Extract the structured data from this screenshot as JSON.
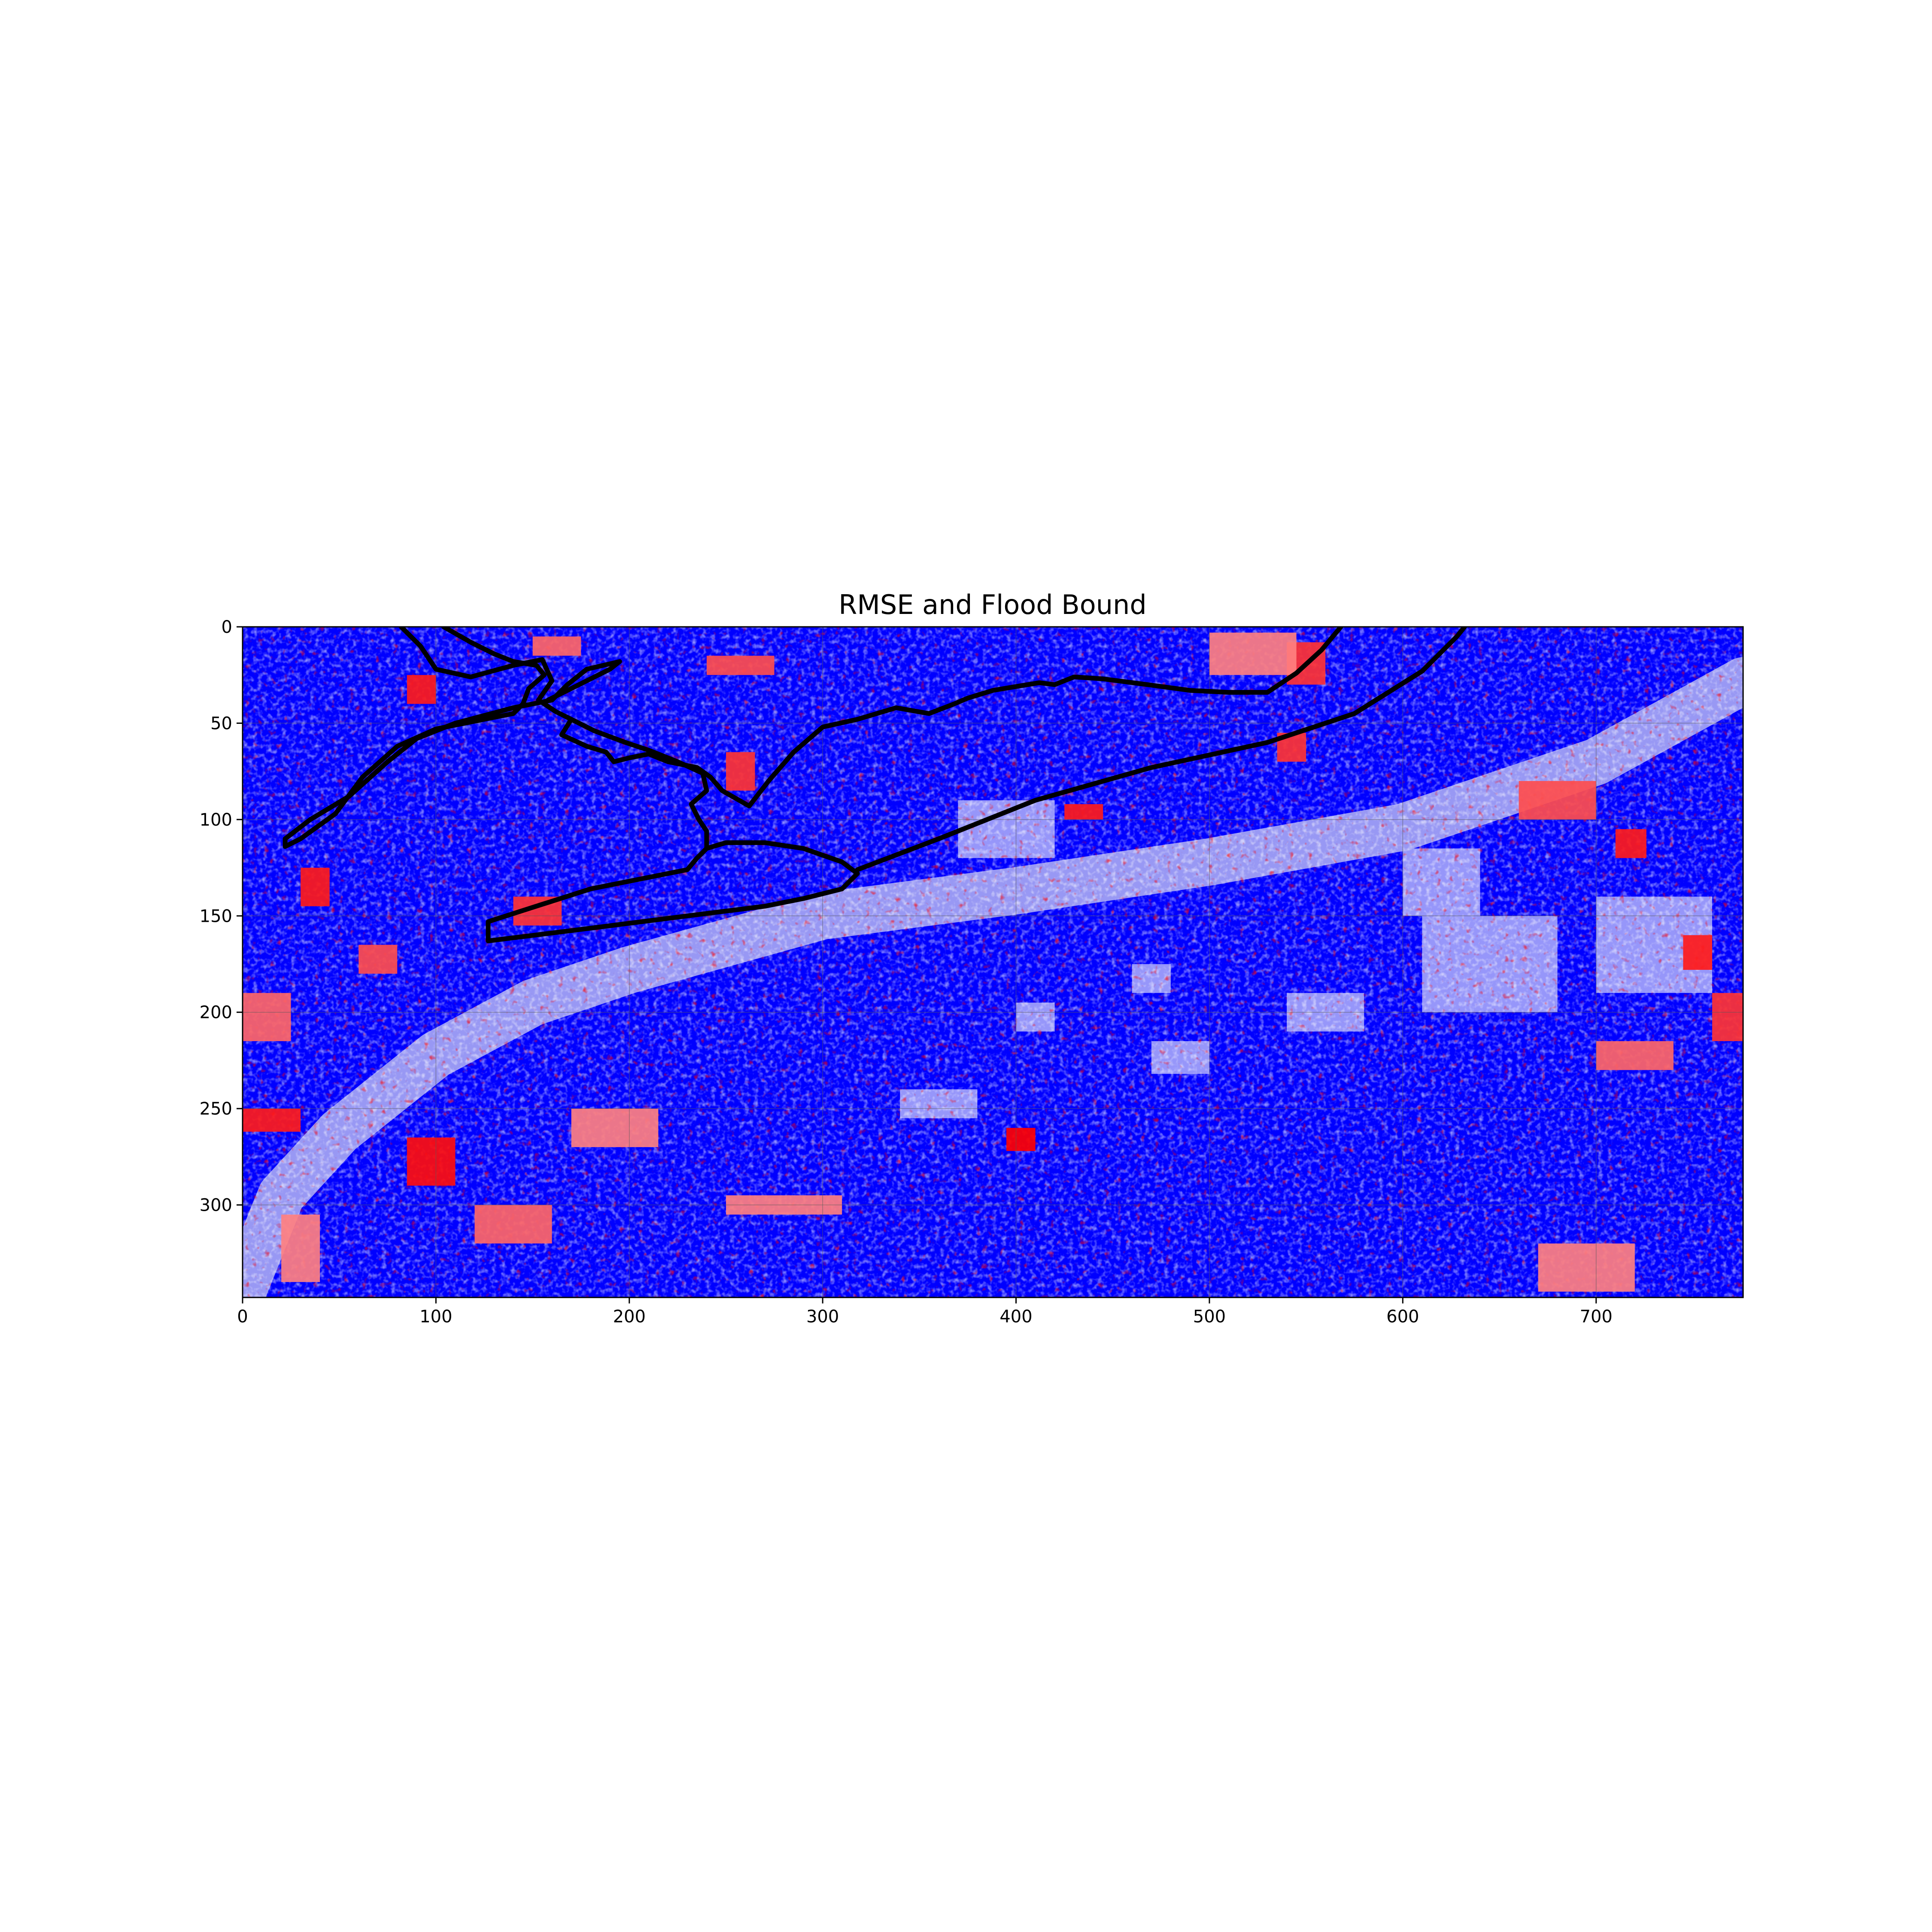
{
  "chart_data": {
    "type": "heatmap",
    "title": "RMSE and Flood Bound",
    "xlabel": "",
    "ylabel": "",
    "xlim": [
      0,
      776
    ],
    "ylim": [
      348,
      0
    ],
    "x_ticks": [
      0,
      100,
      200,
      300,
      400,
      500,
      600,
      700
    ],
    "y_ticks": [
      0,
      50,
      100,
      150,
      200,
      250,
      300
    ],
    "grid": true,
    "colormap": "bwr",
    "colors": {
      "low": "#0000ff",
      "mid": "#ffffff",
      "high": "#ff0000",
      "bound_line": "#000000"
    },
    "river_band": {
      "description_free": true,
      "centerline": [
        [
          0,
          345
        ],
        [
          20,
          295
        ],
        [
          50,
          262
        ],
        [
          100,
          222
        ],
        [
          150,
          195
        ],
        [
          200,
          178
        ],
        [
          300,
          150
        ],
        [
          400,
          137
        ],
        [
          500,
          122
        ],
        [
          600,
          104
        ],
        [
          700,
          70
        ],
        [
          776,
          28
        ]
      ]
    },
    "hot_patches": [
      {
        "x": [
          85,
          100
        ],
        "y": [
          25,
          40
        ],
        "value": 0.9
      },
      {
        "x": [
          150,
          175
        ],
        "y": [
          5,
          15
        ],
        "value": 0.6
      },
      {
        "x": [
          240,
          275
        ],
        "y": [
          15,
          25
        ],
        "value": 0.7
      },
      {
        "x": [
          540,
          560
        ],
        "y": [
          8,
          30
        ],
        "value": 0.8
      },
      {
        "x": [
          500,
          545
        ],
        "y": [
          3,
          25
        ],
        "value": 0.5
      },
      {
        "x": [
          250,
          265
        ],
        "y": [
          65,
          85
        ],
        "value": 0.8
      },
      {
        "x": [
          30,
          45
        ],
        "y": [
          125,
          145
        ],
        "value": 0.9
      },
      {
        "x": [
          140,
          165
        ],
        "y": [
          140,
          155
        ],
        "value": 0.8
      },
      {
        "x": [
          85,
          110
        ],
        "y": [
          265,
          290
        ],
        "value": 0.95
      },
      {
        "x": [
          170,
          215
        ],
        "y": [
          250,
          270
        ],
        "value": 0.5
      },
      {
        "x": [
          395,
          410
        ],
        "y": [
          260,
          272
        ],
        "value": 1.0
      },
      {
        "x": [
          0,
          30
        ],
        "y": [
          250,
          262
        ],
        "value": 0.9
      },
      {
        "x": [
          250,
          310
        ],
        "y": [
          295,
          305
        ],
        "value": 0.5
      },
      {
        "x": [
          660,
          700
        ],
        "y": [
          80,
          100
        ],
        "value": 0.7
      },
      {
        "x": [
          710,
          726
        ],
        "y": [
          105,
          120
        ],
        "value": 0.9
      },
      {
        "x": [
          745,
          760
        ],
        "y": [
          160,
          178
        ],
        "value": 0.9
      },
      {
        "x": [
          700,
          740
        ],
        "y": [
          215,
          230
        ],
        "value": 0.6
      },
      {
        "x": [
          670,
          720
        ],
        "y": [
          320,
          345
        ],
        "value": 0.5
      },
      {
        "x": [
          0,
          25
        ],
        "y": [
          190,
          215
        ],
        "value": 0.6
      },
      {
        "x": [
          20,
          40
        ],
        "y": [
          305,
          340
        ],
        "value": 0.5
      },
      {
        "x": [
          120,
          160
        ],
        "y": [
          300,
          320
        ],
        "value": 0.6
      },
      {
        "x": [
          425,
          445
        ],
        "y": [
          92,
          100
        ],
        "value": 0.9
      },
      {
        "x": [
          535,
          550
        ],
        "y": [
          55,
          70
        ],
        "value": 0.8
      },
      {
        "x": [
          60,
          80
        ],
        "y": [
          165,
          180
        ],
        "value": 0.7
      },
      {
        "x": [
          760,
          776
        ],
        "y": [
          190,
          215
        ],
        "value": 0.8
      }
    ],
    "pale_patches": [
      {
        "x": [
          400,
          420
        ],
        "y": [
          195,
          210
        ]
      },
      {
        "x": [
          460,
          480
        ],
        "y": [
          175,
          190
        ]
      },
      {
        "x": [
          540,
          580
        ],
        "y": [
          190,
          210
        ]
      },
      {
        "x": [
          340,
          380
        ],
        "y": [
          240,
          255
        ]
      },
      {
        "x": [
          610,
          680
        ],
        "y": [
          150,
          200
        ]
      },
      {
        "x": [
          700,
          760
        ],
        "y": [
          140,
          190
        ]
      },
      {
        "x": [
          370,
          420
        ],
        "y": [
          90,
          120
        ]
      },
      {
        "x": [
          470,
          500
        ],
        "y": [
          215,
          232
        ]
      },
      {
        "x": [
          600,
          640
        ],
        "y": [
          115,
          150
        ]
      }
    ],
    "flood_bound": [
      {
        "name": "",
        "points": [
          [
            82,
            0
          ],
          [
            92,
            10
          ],
          [
            100,
            22
          ],
          [
            118,
            26
          ],
          [
            140,
            20
          ],
          [
            155,
            17
          ],
          [
            160,
            28
          ],
          [
            153,
            38
          ],
          [
            162,
            44
          ],
          [
            170,
            48
          ],
          [
            165,
            56
          ],
          [
            178,
            62
          ],
          [
            188,
            65
          ],
          [
            192,
            70
          ],
          [
            200,
            68
          ],
          [
            210,
            66
          ],
          [
            220,
            70
          ],
          [
            235,
            73
          ],
          [
            242,
            78
          ],
          [
            248,
            85
          ],
          [
            262,
            93
          ],
          [
            272,
            80
          ],
          [
            285,
            65
          ],
          [
            300,
            52
          ],
          [
            318,
            48
          ],
          [
            338,
            42
          ],
          [
            355,
            45
          ],
          [
            368,
            40
          ],
          [
            375,
            37
          ],
          [
            388,
            33
          ],
          [
            400,
            31
          ],
          [
            412,
            29
          ],
          [
            420,
            30
          ],
          [
            430,
            26
          ],
          [
            445,
            27
          ],
          [
            468,
            30
          ],
          [
            490,
            33
          ],
          [
            510,
            34
          ],
          [
            530,
            34
          ],
          [
            545,
            24
          ],
          [
            558,
            12
          ],
          [
            568,
            0
          ]
        ]
      },
      {
        "name": "",
        "points": [
          [
            104,
            0
          ],
          [
            118,
            8
          ],
          [
            130,
            14
          ],
          [
            140,
            18
          ],
          [
            152,
            20
          ],
          [
            156,
            25
          ],
          [
            148,
            32
          ],
          [
            145,
            40
          ],
          [
            140,
            45
          ],
          [
            125,
            48
          ],
          [
            100,
            53
          ],
          [
            80,
            62
          ],
          [
            62,
            78
          ],
          [
            48,
            97
          ],
          [
            30,
            110
          ],
          [
            22,
            114
          ],
          [
            22,
            110
          ],
          [
            35,
            100
          ],
          [
            55,
            88
          ],
          [
            75,
            70
          ],
          [
            90,
            58
          ],
          [
            110,
            50
          ],
          [
            140,
            42
          ],
          [
            160,
            38
          ],
          [
            168,
            30
          ],
          [
            178,
            22
          ],
          [
            195,
            18
          ],
          [
            190,
            22
          ],
          [
            170,
            32
          ],
          [
            158,
            38
          ]
        ]
      },
      {
        "name": "",
        "points": [
          [
            170,
            48
          ],
          [
            182,
            54
          ],
          [
            198,
            60
          ],
          [
            210,
            64
          ],
          [
            225,
            70
          ],
          [
            238,
            76
          ],
          [
            240,
            85
          ],
          [
            232,
            92
          ],
          [
            236,
            100
          ],
          [
            240,
            106
          ],
          [
            240,
            115
          ],
          [
            235,
            120
          ],
          [
            230,
            126
          ],
          [
            210,
            130
          ],
          [
            180,
            136
          ],
          [
            155,
            144
          ],
          [
            127,
            153
          ],
          [
            127,
            163
          ],
          [
            175,
            157
          ],
          [
            230,
            150
          ],
          [
            270,
            145
          ],
          [
            290,
            141
          ],
          [
            310,
            136
          ],
          [
            318,
            128
          ],
          [
            310,
            122
          ],
          [
            290,
            115
          ],
          [
            270,
            112
          ],
          [
            250,
            112
          ],
          [
            240,
            115
          ]
        ]
      },
      {
        "name": "",
        "points": [
          [
            318,
            126
          ],
          [
            360,
            110
          ],
          [
            410,
            90
          ],
          [
            470,
            73
          ],
          [
            530,
            60
          ],
          [
            575,
            45
          ],
          [
            610,
            23
          ],
          [
            628,
            5
          ],
          [
            632,
            0
          ]
        ]
      }
    ]
  }
}
